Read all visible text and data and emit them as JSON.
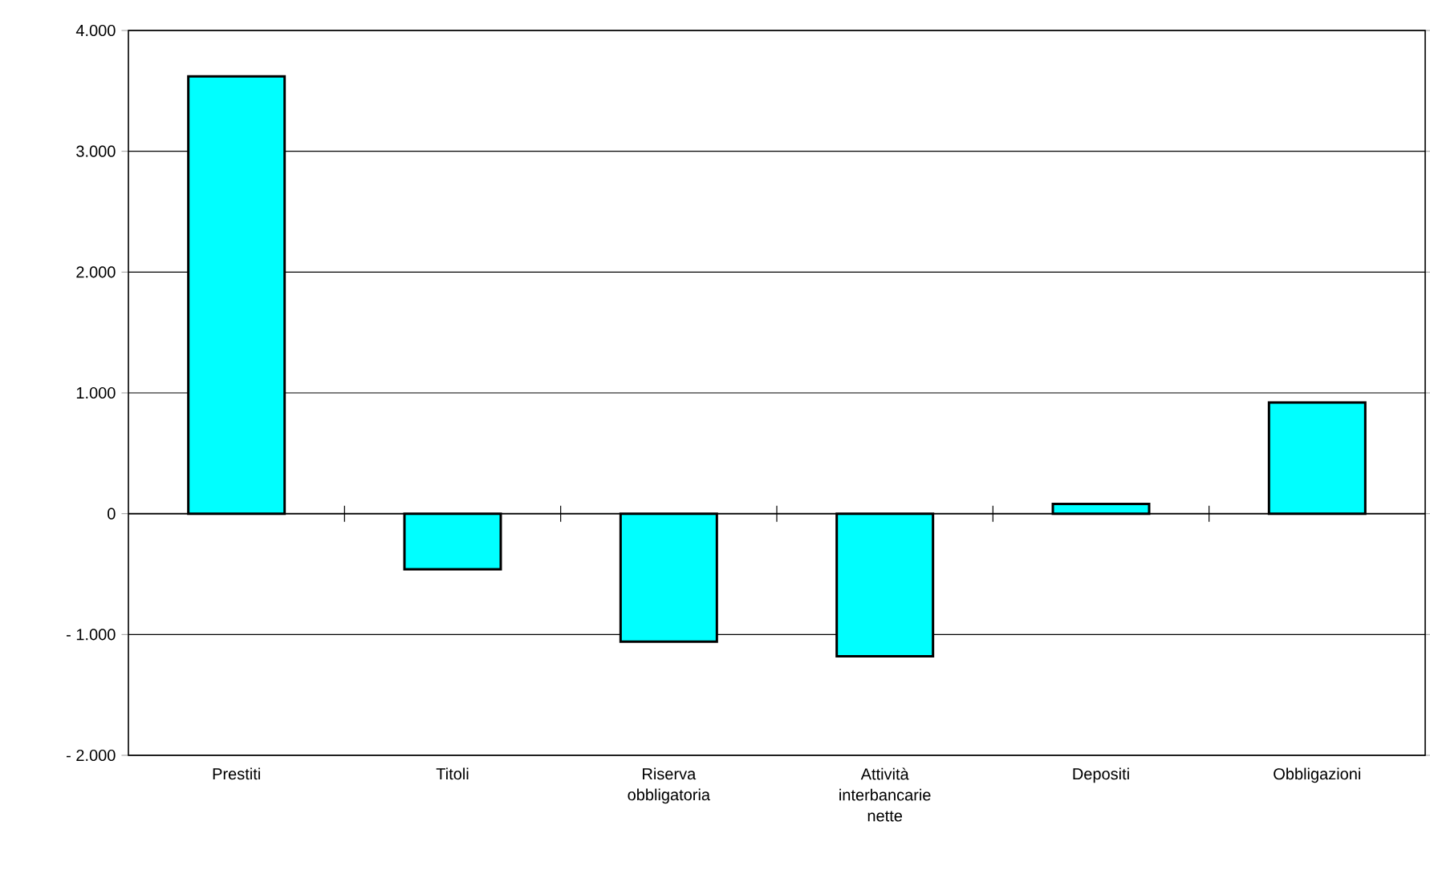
{
  "chart_data": {
    "type": "bar",
    "categories": [
      "Prestiti",
      "Titoli",
      "Riserva obbligatoria",
      "Attività interbancarie nette",
      "Depositi",
      "Obbligazioni"
    ],
    "values": [
      3620,
      -460,
      -1060,
      -1180,
      80,
      920
    ],
    "color": "#00ffff",
    "ylim": [
      -2000,
      4000
    ],
    "yticks": [
      {
        "value": -2000,
        "label": "- 2.000"
      },
      {
        "value": -1000,
        "label": "- 1.000"
      },
      0,
      {
        "value": 1000,
        "label": "1.000"
      },
      {
        "value": 2000,
        "label": "2.000"
      },
      {
        "value": 3000,
        "label": "3.000"
      },
      {
        "value": 4000,
        "label": "4.000"
      }
    ],
    "grid": "y"
  }
}
